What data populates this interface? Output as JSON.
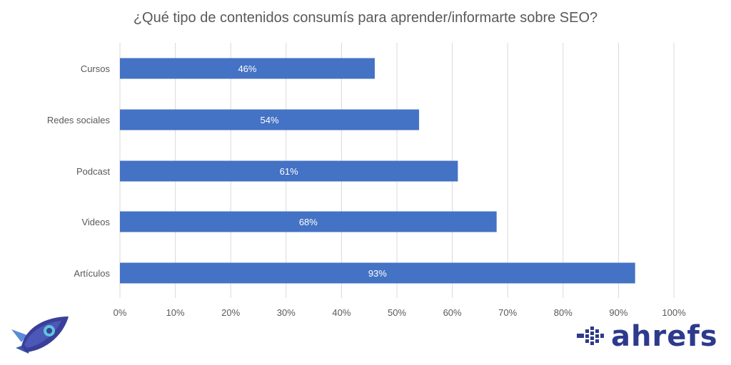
{
  "chart_data": {
    "type": "bar",
    "orientation": "horizontal",
    "title": "¿Qué tipo de contenidos consumís para aprender/informarte sobre SEO?",
    "categories": [
      "Cursos",
      "Redes sociales",
      "Podcast",
      "Videos",
      "Artículos"
    ],
    "values": [
      46,
      54,
      61,
      68,
      93
    ],
    "data_labels": [
      "46%",
      "54%",
      "61%",
      "68%",
      "93%"
    ],
    "x_ticks": [
      "0%",
      "10%",
      "20%",
      "30%",
      "40%",
      "50%",
      "60%",
      "70%",
      "80%",
      "90%",
      "100%"
    ],
    "xlim": [
      0,
      100
    ],
    "grid": "vertical",
    "legend": "none",
    "bar_color": "#4472c4",
    "grid_color": "#d9d9d9",
    "text_color": "#595959"
  },
  "brand": {
    "name": "ahrefs",
    "color": "#2d3a8c"
  },
  "icons": [
    "rocket-icon",
    "ahrefs-logo-icon"
  ]
}
